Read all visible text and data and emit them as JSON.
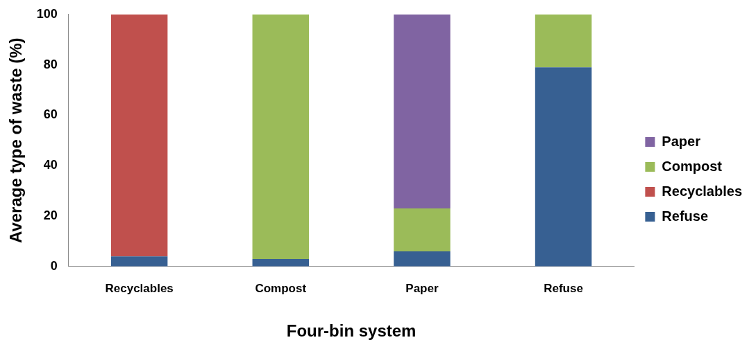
{
  "chart_data": {
    "type": "bar",
    "stacked": true,
    "xlabel": "Four-bin system",
    "ylabel": "Average type of waste (%)",
    "categories": [
      "Recyclables",
      "Compost",
      "Paper",
      "Refuse"
    ],
    "series": [
      {
        "name": "Refuse",
        "color": "#376092",
        "values": [
          4,
          3,
          6,
          79
        ]
      },
      {
        "name": "Recyclables",
        "color": "#c0504d",
        "values": [
          96,
          null,
          null,
          null
        ]
      },
      {
        "name": "Compost",
        "color": "#9bbb59",
        "values": [
          null,
          97,
          17,
          21
        ]
      },
      {
        "name": "Paper",
        "color": "#8064a2",
        "values": [
          null,
          null,
          77,
          null
        ]
      }
    ],
    "ylim": [
      0,
      100
    ],
    "yticks": [
      0,
      20,
      40,
      60,
      80,
      100
    ],
    "grid": false,
    "legend": "right"
  }
}
